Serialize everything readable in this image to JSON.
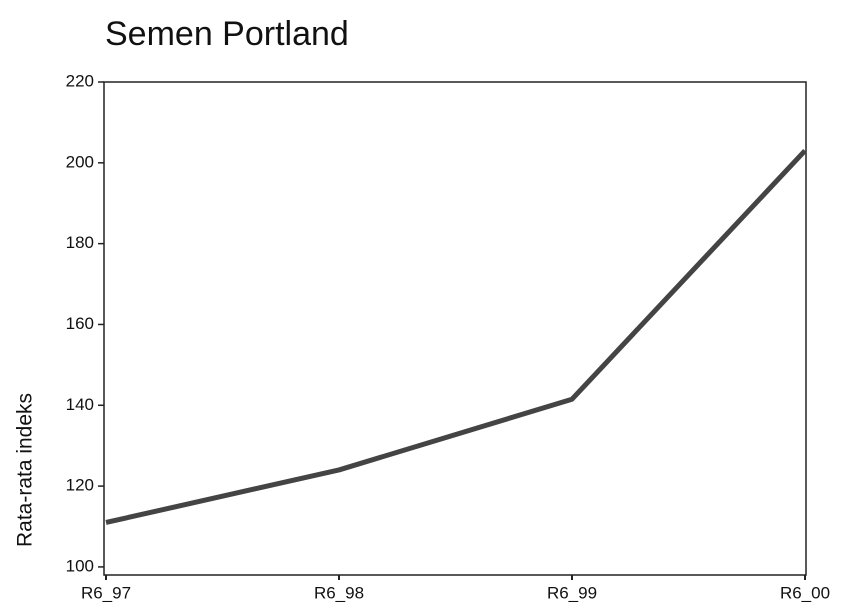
{
  "chart_data": {
    "type": "line",
    "title": "Semen Portland",
    "y_label": "Rata-rata indeks",
    "categories": [
      "R6_97",
      "R6_98",
      "R6_99",
      "R6_00"
    ],
    "values": [
      111,
      124,
      141.5,
      203
    ],
    "color": "#444444",
    "ylim": [
      98,
      220
    ],
    "yticks": [
      100,
      120,
      140,
      160,
      180,
      200,
      220
    ]
  }
}
